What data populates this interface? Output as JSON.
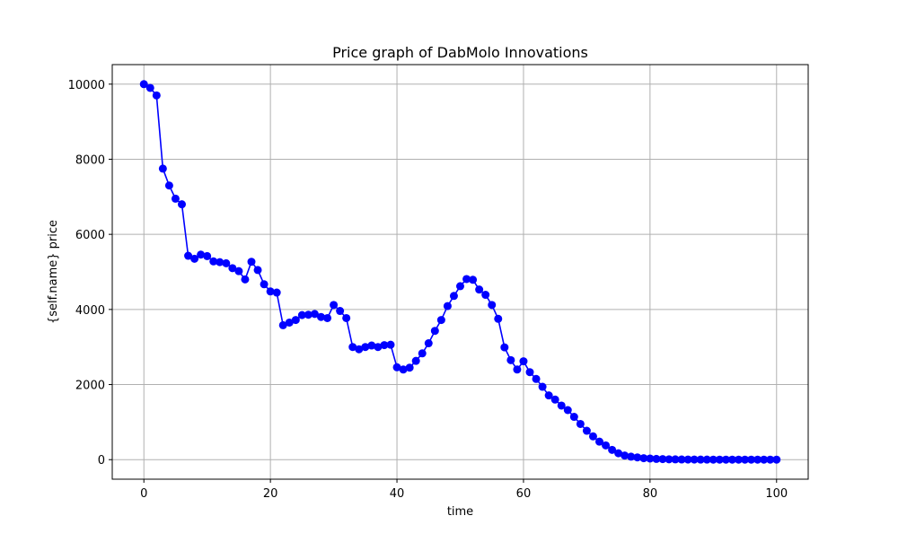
{
  "chart_data": {
    "type": "line",
    "title": "Price graph of DabMolo Innovations",
    "xlabel": "time",
    "ylabel": "{self.name} price",
    "xlim": [
      -5,
      105
    ],
    "ylim": [
      -520,
      10520
    ],
    "xticks": [
      0,
      20,
      40,
      60,
      80,
      100
    ],
    "yticks": [
      0,
      2000,
      4000,
      6000,
      8000,
      10000
    ],
    "grid": true,
    "marker": "circle",
    "series": [
      {
        "color": "#0000ff",
        "x": [
          0,
          1,
          2,
          3,
          4,
          5,
          6,
          7,
          8,
          9,
          10,
          11,
          12,
          13,
          14,
          15,
          16,
          17,
          18,
          19,
          20,
          21,
          22,
          23,
          24,
          25,
          26,
          27,
          28,
          29,
          30,
          31,
          32,
          33,
          34,
          35,
          36,
          37,
          38,
          39,
          40,
          41,
          42,
          43,
          44,
          45,
          46,
          47,
          48,
          49,
          50,
          51,
          52,
          53,
          54,
          55,
          56,
          57,
          58,
          59,
          60,
          61,
          62,
          63,
          64,
          65,
          66,
          67,
          68,
          69,
          70,
          71,
          72,
          73,
          74,
          75,
          76,
          77,
          78,
          79,
          80,
          81,
          82,
          83,
          84,
          85,
          86,
          87,
          88,
          89,
          90,
          91,
          92,
          93,
          94,
          95,
          96,
          97,
          98,
          99,
          100
        ],
        "y": [
          10000,
          9900,
          9700,
          7750,
          7300,
          6950,
          6800,
          5430,
          5350,
          5460,
          5420,
          5280,
          5260,
          5230,
          5100,
          5020,
          4800,
          5270,
          5050,
          4670,
          4480,
          4450,
          3580,
          3650,
          3720,
          3850,
          3860,
          3880,
          3800,
          3770,
          4120,
          3960,
          3770,
          3000,
          2940,
          3000,
          3040,
          3000,
          3050,
          3060,
          2460,
          2400,
          2450,
          2630,
          2830,
          3100,
          3430,
          3720,
          4090,
          4360,
          4620,
          4810,
          4790,
          4530,
          4390,
          4120,
          3750,
          2990,
          2650,
          2400,
          2620,
          2330,
          2150,
          1940,
          1710,
          1600,
          1440,
          1320,
          1140,
          950,
          770,
          620,
          480,
          380,
          260,
          170,
          110,
          80,
          60,
          40,
          30,
          20,
          15,
          10,
          8,
          5,
          4,
          3,
          2,
          2,
          1,
          1,
          1,
          1,
          0,
          0,
          0,
          0,
          0,
          0,
          0
        ]
      }
    ]
  }
}
